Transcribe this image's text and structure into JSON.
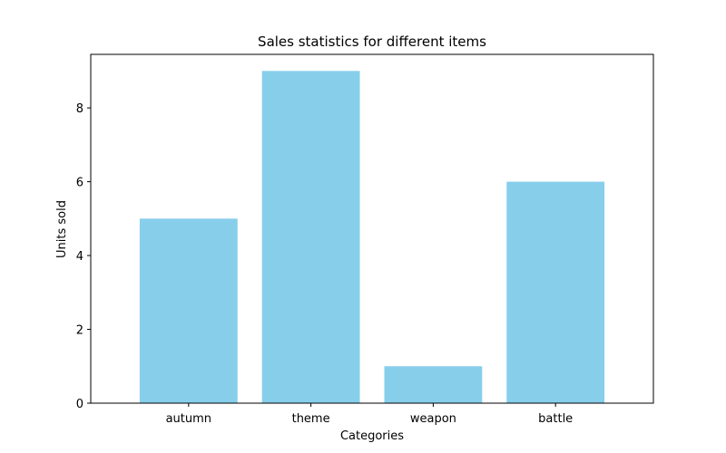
{
  "chart_data": {
    "type": "bar",
    "title": "Sales statistics for different items",
    "xlabel": "Categories",
    "ylabel": "Units sold",
    "categories": [
      "autumn",
      "theme",
      "weapon",
      "battle"
    ],
    "values": [
      5,
      9,
      1,
      6
    ],
    "ylim": [
      0,
      9.45
    ],
    "yticks": [
      0,
      2,
      4,
      6,
      8
    ],
    "bar_color": "#87CEEB",
    "grid": false,
    "legend": "none"
  }
}
